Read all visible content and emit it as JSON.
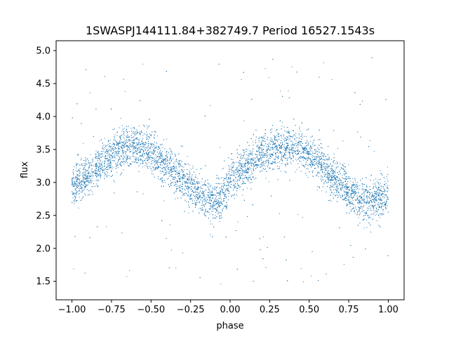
{
  "chart_data": {
    "type": "scatter",
    "title": "1SWASPJ144111.84+382749.7 Period 16527.1543s",
    "xlabel": "phase",
    "ylabel": "flux",
    "xlim": [
      -1.1,
      1.1
    ],
    "ylim": [
      1.22,
      5.15
    ],
    "xticks": [
      -1.0,
      -0.75,
      -0.5,
      -0.25,
      0.0,
      0.25,
      0.5,
      0.75,
      1.0
    ],
    "xtick_labels": [
      "−1.00",
      "−0.75",
      "−0.50",
      "−0.25",
      "0.00",
      "0.25",
      "0.50",
      "0.75",
      "1.00"
    ],
    "yticks": [
      1.5,
      2.0,
      2.5,
      3.0,
      3.5,
      4.0,
      4.5,
      5.0
    ],
    "ytick_labels": [
      "1.5",
      "2.0",
      "2.5",
      "3.0",
      "3.5",
      "4.0",
      "4.5",
      "5.0"
    ],
    "grid": false,
    "marker_color": "#1f77b4",
    "series": [
      {
        "curve": {
          "x": [
            -1.0,
            -0.9,
            -0.8,
            -0.7,
            -0.6,
            -0.5,
            -0.4,
            -0.3,
            -0.2,
            -0.1,
            0.0,
            0.1,
            0.2,
            0.3,
            0.4,
            0.5,
            0.6,
            0.7,
            0.8,
            0.9,
            1.0
          ],
          "y": [
            2.92,
            3.1,
            3.32,
            3.5,
            3.56,
            3.45,
            3.25,
            3.05,
            2.82,
            2.68,
            2.98,
            3.22,
            3.42,
            3.55,
            3.55,
            3.42,
            3.2,
            2.98,
            2.75,
            2.72,
            2.82
          ]
        },
        "scatter_sigma": 0.15,
        "outlier_range": [
          1.45,
          4.9
        ]
      }
    ]
  }
}
